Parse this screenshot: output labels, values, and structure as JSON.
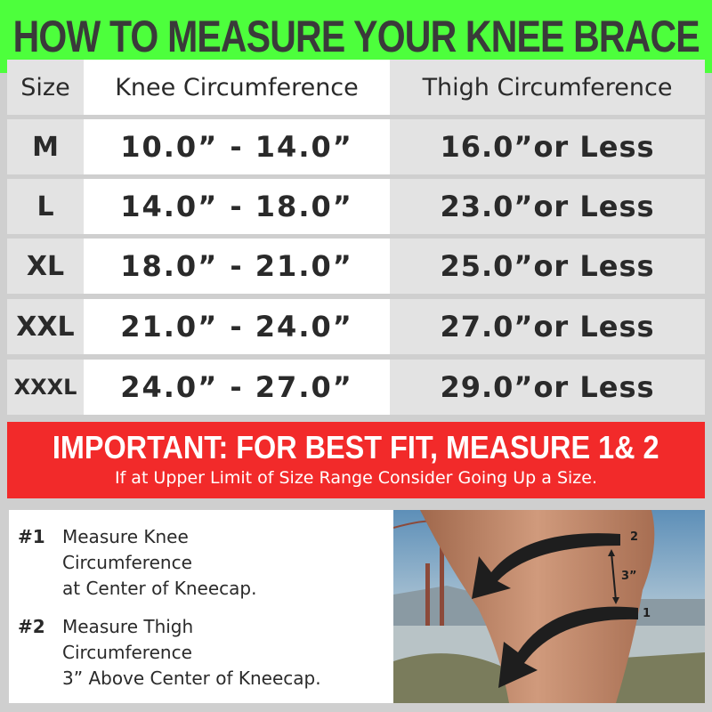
{
  "title": "HOW TO MEASURE YOUR KNEE BRACE",
  "table": {
    "headers": [
      "Size",
      "Knee Circumference",
      "Thigh Circumference"
    ],
    "rows": [
      [
        "M",
        "10.0”  -  14.0”",
        "16.0”or Less"
      ],
      [
        "L",
        "14.0”  -  18.0”",
        "23.0”or Less"
      ],
      [
        "XL",
        "18.0”  -  21.0”",
        "25.0”or Less"
      ],
      [
        "XXL",
        "21.0”  -  24.0”",
        "27.0”or Less"
      ],
      [
        "XXXL",
        "24.0”  -  27.0”",
        "29.0”or Less"
      ]
    ]
  },
  "banner": {
    "headline": "IMPORTANT: FOR BEST FIT, MEASURE  1& 2",
    "subline": "If at Upper Limit of Size Range Consider Going Up a Size."
  },
  "steps": [
    {
      "num": "#1",
      "lines": [
        "Measure Knee",
        "Circumference",
        "at Center of Kneecap."
      ]
    },
    {
      "num": "#2",
      "lines": [
        "Measure Thigh",
        "Circumference",
        "3” Above Center of Kneecap."
      ]
    }
  ],
  "photo": {
    "label_top": "2",
    "label_bottom": "1",
    "distance": "3”"
  },
  "colors": {
    "title_bg": "#4dff3c",
    "banner_bg": "#f22a2a",
    "background": "#cfcfcf"
  }
}
